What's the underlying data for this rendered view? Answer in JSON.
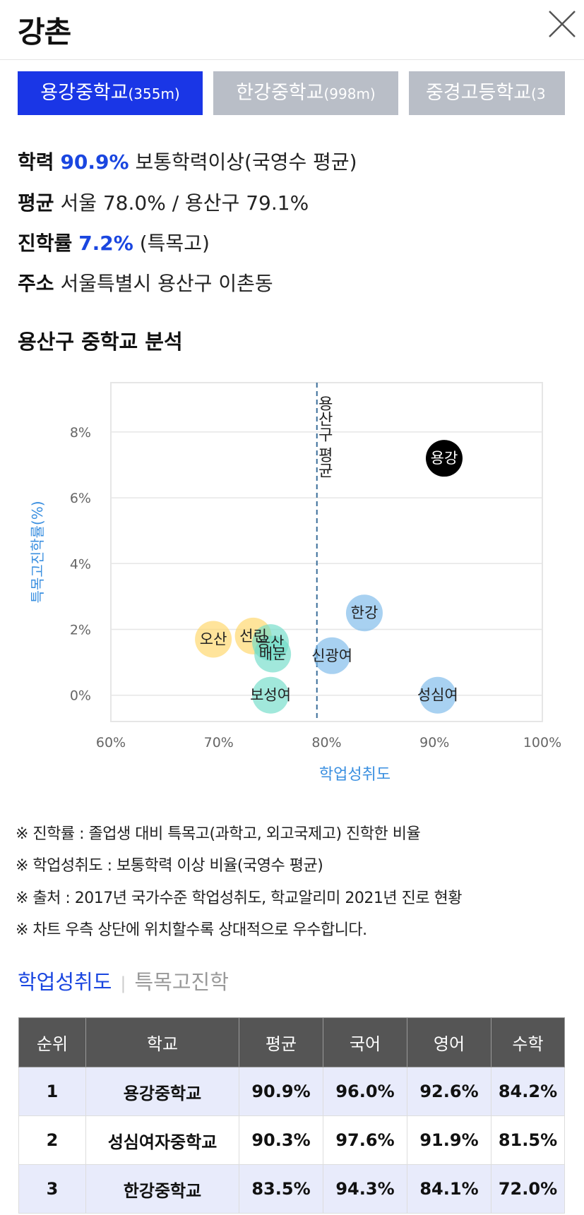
{
  "header": {
    "title": "강촌"
  },
  "tabs": [
    {
      "name": "용강중학교",
      "dist": "(355m)"
    },
    {
      "name": "한강중학교",
      "dist": "(998m)"
    },
    {
      "name": "중경고등학교",
      "dist": "(3"
    }
  ],
  "info": {
    "academic_label": "학력",
    "academic_value": "90.9%",
    "academic_desc": "보통학력이상(국영수 평균)",
    "avg_label": "평균",
    "avg_value": "서울 78.0% / 용산구 79.1%",
    "adv_label": "진학률",
    "adv_value": "7.2%",
    "adv_desc": "(특목고)",
    "addr_label": "주소",
    "addr_value": "서울특별시 용산구 이촌동"
  },
  "section_title": "용산구 중학교 분석",
  "chart_data": {
    "type": "scatter",
    "xlabel": "학업성취도",
    "ylabel": "특목고진학률(%)",
    "xlim": [
      60,
      100
    ],
    "ylim": [
      -0.8,
      9.5
    ],
    "x_ticks": [
      "60%",
      "70%",
      "80%",
      "90%",
      "100%"
    ],
    "y_ticks": [
      "0%",
      "2%",
      "4%",
      "6%",
      "8%"
    ],
    "x_tick_values": [
      60,
      70,
      80,
      90,
      100
    ],
    "y_tick_values": [
      0,
      2,
      4,
      6,
      8
    ],
    "reference_line": {
      "x": 79.1,
      "label": "용산구 평균"
    },
    "points": [
      {
        "name": "용강",
        "x": 90.9,
        "y": 7.2,
        "color": "#000000"
      },
      {
        "name": "한강",
        "x": 83.5,
        "y": 2.5,
        "color": "#7ab8ea"
      },
      {
        "name": "신광여",
        "x": 80.5,
        "y": 1.2,
        "color": "#7ab8ea"
      },
      {
        "name": "성심여",
        "x": 90.3,
        "y": 0.0,
        "color": "#7ab8ea"
      },
      {
        "name": "오산",
        "x": 69.5,
        "y": 1.7,
        "color": "#ffd666"
      },
      {
        "name": "선린",
        "x": 73.2,
        "y": 1.8,
        "color": "#ffd666"
      },
      {
        "name": "용산",
        "x": 74.8,
        "y": 1.6,
        "color": "#6fdcc8"
      },
      {
        "name": "배문",
        "x": 75.0,
        "y": 1.25,
        "color": "#6fdcc8"
      },
      {
        "name": "보성여",
        "x": 74.8,
        "y": 0.0,
        "color": "#6fdcc8"
      }
    ]
  },
  "notes": [
    "※ 진학률 : 졸업생 대비 특목고(과학고, 외고국제고) 진학한 비율",
    "※ 학업성취도 : 보통학력 이상 비율(국영수 평균)",
    "※ 출처 : 2017년 국가수준 학업성취도, 학교알리미 2021년 진로 현황",
    "※ 차트 우측 상단에 위치할수록 상대적으로 우수합니다."
  ],
  "subtabs": {
    "active": "학업성취도",
    "inactive": "특목고진학"
  },
  "table": {
    "headers": [
      "순위",
      "학교",
      "평균",
      "국어",
      "영어",
      "수학"
    ],
    "rows": [
      [
        "1",
        "용강중학교",
        "90.9%",
        "96.0%",
        "92.6%",
        "84.2%"
      ],
      [
        "2",
        "성심여자중학교",
        "90.3%",
        "97.6%",
        "91.9%",
        "81.5%"
      ],
      [
        "3",
        "한강중학교",
        "83.5%",
        "94.3%",
        "84.1%",
        "72.0%"
      ]
    ]
  },
  "colors": {
    "accent": "#1a36e6",
    "tab_inactive": "#b9bec7",
    "axis_label": "#3a8fe0"
  }
}
